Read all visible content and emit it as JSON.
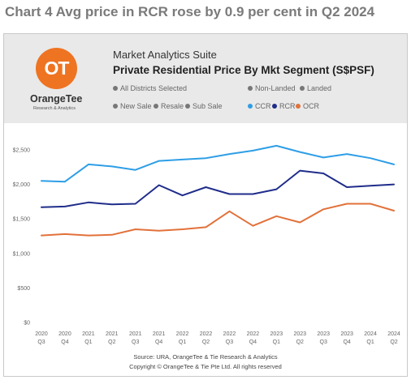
{
  "page_title": "Chart 4 Avg price in RCR rose by 0.9 per cent in Q2 2024",
  "logo": {
    "mark": "OT",
    "name": "OrangeTee",
    "tagline": "Research & Analytics",
    "color": "#ee7422"
  },
  "header": {
    "suite": "Market Analytics Suite",
    "title": "Private Residential Price By Mkt Segment (S$PSF)"
  },
  "filters": {
    "districts": "All Districts Selected",
    "new_sale": "New Sale",
    "resale": "Resale",
    "sub_sale": "Sub Sale",
    "non_landed": "Non-Landed",
    "landed": "Landed"
  },
  "legend": [
    {
      "name": "CCR",
      "color": "#2e9ee6"
    },
    {
      "name": "RCR",
      "color": "#1f2d8a"
    },
    {
      "name": "OCR",
      "color": "#e2713a"
    }
  ],
  "chart_data": {
    "type": "line",
    "x": [
      "2020 Q3",
      "2020 Q4",
      "2021 Q1",
      "2021 Q2",
      "2021 Q3",
      "2021 Q4",
      "2022 Q1",
      "2022 Q2",
      "2022 Q3",
      "2022 Q4",
      "2023 Q1",
      "2023 Q2",
      "2023 Q3",
      "2023 Q4",
      "2024 Q1",
      "2024 Q2"
    ],
    "x_tick_labels": [
      [
        "2020",
        "Q3"
      ],
      [
        "2020",
        "Q4"
      ],
      [
        "2021",
        "Q1"
      ],
      [
        "2021",
        "Q2"
      ],
      [
        "2021",
        "Q3"
      ],
      [
        "2021",
        "Q4"
      ],
      [
        "2022",
        "Q1"
      ],
      [
        "2022",
        "Q2"
      ],
      [
        "2022",
        "Q3"
      ],
      [
        "2022",
        "Q4"
      ],
      [
        "2023",
        "Q1"
      ],
      [
        "2023",
        "Q2"
      ],
      [
        "2023",
        "Q3"
      ],
      [
        "2023",
        "Q4"
      ],
      [
        "2024",
        "Q1"
      ],
      [
        "2024",
        "Q2"
      ]
    ],
    "y_ticks": [
      0,
      500,
      1000,
      1500,
      2000,
      2500
    ],
    "y_tick_labels": [
      "$0",
      "$500",
      "$1,000",
      "$1,500",
      "$2,000",
      "$2,500"
    ],
    "ylim": [
      0,
      2500
    ],
    "grid": false,
    "legend_position": "top",
    "series": [
      {
        "name": "CCR",
        "color": "#2e9ee6",
        "values": [
          2050,
          2040,
          2290,
          2260,
          2210,
          2340,
          2360,
          2380,
          2440,
          2490,
          2560,
          2470,
          2390,
          2440,
          2380,
          2290
        ]
      },
      {
        "name": "RCR",
        "color": "#1f2d8a",
        "values": [
          1670,
          1680,
          1740,
          1710,
          1720,
          1990,
          1840,
          1960,
          1860,
          1860,
          1930,
          2200,
          2160,
          1960,
          1980,
          2000
        ]
      },
      {
        "name": "OCR",
        "color": "#e2713a",
        "values": [
          1260,
          1280,
          1260,
          1270,
          1350,
          1330,
          1350,
          1380,
          1610,
          1400,
          1540,
          1450,
          1640,
          1720,
          1720,
          1620
        ]
      }
    ]
  },
  "footer": {
    "source": "Source: URA, OrangeTee & Tie Research & Analytics",
    "copyright": "Copyright © OrangeTee & Tie Pte Ltd. All rights reserved"
  }
}
